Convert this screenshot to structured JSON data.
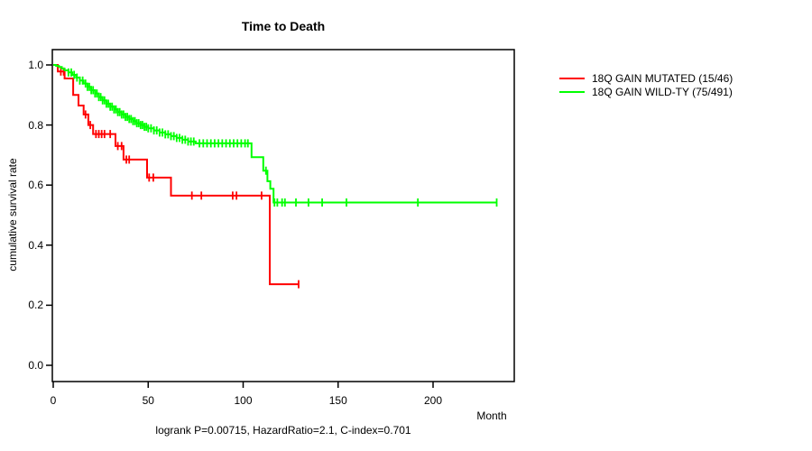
{
  "chart_data": {
    "type": "line",
    "subtype": "kaplan-meier-step",
    "title": "Time to Death",
    "xlabel": "Month",
    "ylabel": "cumulative survival rate",
    "annotation": "logrank P=0.00715, HazardRatio=2.1, C-index=0.701",
    "xlim": [
      0,
      242
    ],
    "ylim": [
      0.0,
      1.0
    ],
    "xticks": [
      "0",
      "50",
      "100",
      "150",
      "200"
    ],
    "xtick_values": [
      0,
      50,
      100,
      150,
      200
    ],
    "yticks": [
      "0.0",
      "0.2",
      "0.4",
      "0.6",
      "0.8",
      "1.0"
    ],
    "ytick_values": [
      0.0,
      0.2,
      0.4,
      0.6,
      0.8,
      1.0
    ],
    "grid": false,
    "legend_position": "right-outside",
    "axis_color": "#000000",
    "series": [
      {
        "name": "18Q GAIN MUTATED (15/46)",
        "color": "#ff0000",
        "steps": [
          [
            0,
            1.0
          ],
          [
            2.4,
            0.978
          ],
          [
            6,
            0.955
          ],
          [
            10.5,
            0.9
          ],
          [
            13.3,
            0.865
          ],
          [
            16,
            0.835
          ],
          [
            18.5,
            0.8
          ],
          [
            21,
            0.77
          ],
          [
            32.8,
            0.73
          ],
          [
            37,
            0.685
          ],
          [
            49.4,
            0.625
          ],
          [
            62,
            0.565
          ],
          [
            114,
            0.27
          ]
        ],
        "end_month": 129.5,
        "censor_months": [
          4,
          5.5,
          17,
          19.5,
          22.5,
          24,
          25.5,
          27,
          30,
          34,
          36,
          38.5,
          40,
          50.5,
          52.7,
          73,
          78,
          94.5,
          96.5,
          109.7,
          129.2
        ]
      },
      {
        "name": "18Q GAIN WILD-TY (75/491)",
        "color": "#00ff00",
        "steps": [
          [
            0,
            1.0
          ],
          [
            1.5,
            0.997
          ],
          [
            3,
            0.993
          ],
          [
            4.5,
            0.988
          ],
          [
            6,
            0.982
          ],
          [
            8,
            0.975
          ],
          [
            10,
            0.967
          ],
          [
            12,
            0.958
          ],
          [
            14,
            0.948
          ],
          [
            16,
            0.938
          ],
          [
            18,
            0.927
          ],
          [
            20,
            0.916
          ],
          [
            22,
            0.905
          ],
          [
            24,
            0.893
          ],
          [
            26,
            0.882
          ],
          [
            28,
            0.871
          ],
          [
            30,
            0.861
          ],
          [
            32,
            0.852
          ],
          [
            34,
            0.843
          ],
          [
            36,
            0.835
          ],
          [
            38,
            0.827
          ],
          [
            40,
            0.82
          ],
          [
            42,
            0.813
          ],
          [
            44,
            0.806
          ],
          [
            46,
            0.8
          ],
          [
            48,
            0.794
          ],
          [
            50,
            0.789
          ],
          [
            53,
            0.782
          ],
          [
            56,
            0.775
          ],
          [
            59,
            0.769
          ],
          [
            62,
            0.763
          ],
          [
            65,
            0.757
          ],
          [
            68,
            0.751
          ],
          [
            71,
            0.745
          ],
          [
            75,
            0.739
          ],
          [
            104.4,
            0.693
          ],
          [
            110.6,
            0.648
          ],
          [
            112.8,
            0.613
          ],
          [
            114.3,
            0.588
          ],
          [
            116,
            0.542
          ]
        ],
        "end_month": 233.5,
        "censor_months": [
          8,
          9.5,
          11,
          12.5,
          14,
          15.5,
          17,
          18,
          19,
          20,
          21,
          22,
          23,
          24,
          25,
          26,
          27,
          28,
          29,
          30,
          31,
          32,
          33,
          34,
          35,
          36,
          37,
          38,
          39,
          40,
          41,
          42,
          43,
          44,
          45,
          46,
          47,
          48,
          49,
          50,
          51.5,
          53,
          54.5,
          56,
          57.5,
          59,
          60.5,
          62,
          63.5,
          65,
          66.5,
          68,
          69.5,
          71,
          72.5,
          74,
          77,
          79,
          81,
          83,
          85,
          87,
          89,
          91,
          93,
          95,
          97,
          99,
          101,
          102.5,
          112,
          116.5,
          118,
          120.5,
          122,
          127.8,
          134.4,
          141.6,
          154.4,
          192,
          233.5
        ]
      }
    ]
  }
}
